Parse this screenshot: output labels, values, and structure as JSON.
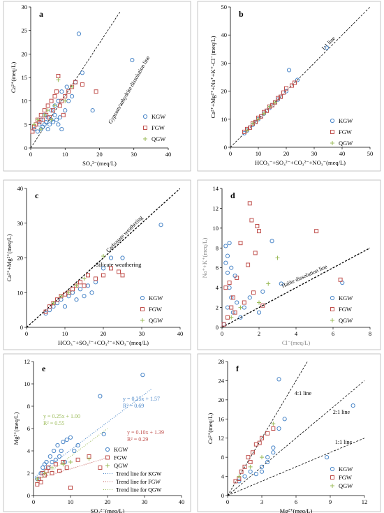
{
  "colors": {
    "KGW": "#4a86c8",
    "FGW": "#c0504d",
    "QGW": "#9bbb59",
    "frame": "#b8b8b8",
    "axis": "#000000"
  },
  "chart_data": [
    {
      "id": "a",
      "type": "scatter",
      "panel_label": "a",
      "xlabel": "SO₄²⁻(meq/L)",
      "ylabel": "Ca²⁺(meq/L)",
      "xlim": [
        0,
        40
      ],
      "ylim": [
        0,
        30
      ],
      "xticks": [
        "0",
        "10",
        "20",
        "30",
        "40"
      ],
      "yticks": [
        "0",
        "5",
        "10",
        "15",
        "20",
        "25",
        "30"
      ],
      "legend": [
        "KGW",
        "FGW",
        "QGW"
      ],
      "legend_position": "right",
      "reference_lines": [
        {
          "label": "Gypsum/anhydrite dissolution line",
          "x1": 0,
          "y1": 0,
          "x2": 26,
          "y2": 29
        }
      ],
      "series": [
        {
          "name": "KGW",
          "marker": "circle",
          "x": [
            1,
            2,
            2.5,
            3,
            3,
            3.5,
            4,
            4,
            4.5,
            5,
            5,
            5.5,
            6,
            6,
            6.5,
            7,
            7,
            7.5,
            8,
            8,
            8.5,
            9,
            9,
            10,
            10.5,
            11,
            12,
            13,
            14,
            15,
            18,
            29.5
          ],
          "y": [
            4,
            3.5,
            5,
            4,
            6,
            4.5,
            5,
            7,
            5.5,
            4,
            6.5,
            5,
            6,
            8,
            5.5,
            7,
            9,
            6,
            5,
            10,
            6.5,
            4,
            12,
            8,
            13,
            10,
            11,
            14,
            24.3,
            16,
            8,
            18.7
          ]
        },
        {
          "name": "FGW",
          "marker": "square",
          "x": [
            0.5,
            1,
            1.5,
            2,
            2.5,
            3,
            3.5,
            4,
            4.5,
            5,
            5.5,
            6,
            6.5,
            7,
            7.5,
            8,
            8.5,
            9,
            9.5,
            10,
            11,
            12,
            13,
            15,
            19
          ],
          "y": [
            3.5,
            4.5,
            5,
            6,
            5.5,
            7,
            6,
            8,
            7,
            9,
            6.5,
            10,
            8,
            11,
            12,
            15.3,
            9,
            10,
            7,
            11,
            12,
            13,
            14,
            13.5,
            12
          ]
        },
        {
          "name": "QGW",
          "marker": "plus",
          "x": [
            1,
            2,
            3,
            4,
            5,
            6,
            7,
            8,
            10,
            12
          ],
          "y": [
            5,
            6,
            4,
            7,
            8,
            6,
            9,
            14.5,
            10,
            13
          ]
        }
      ]
    },
    {
      "id": "b",
      "type": "scatter",
      "panel_label": "b",
      "xlabel": "HCO₃⁻+SO₄²⁻+CO₃²⁻+NO₃⁻(meq/L)",
      "ylabel": "Ca²⁺+Mg²⁺+Na⁺+K⁺-Cl⁻(meq/L)",
      "xlim": [
        0,
        50
      ],
      "ylim": [
        0,
        50
      ],
      "xticks": [
        "0",
        "10",
        "20",
        "30",
        "40",
        "50"
      ],
      "yticks": [
        "0",
        "10",
        "20",
        "30",
        "40",
        "50"
      ],
      "legend": [
        "KGW",
        "FGW",
        "QGW"
      ],
      "legend_position": "bottom-right",
      "reference_lines": [
        {
          "label": "1:1 line",
          "x1": 0,
          "y1": 0,
          "x2": 50,
          "y2": 50
        }
      ],
      "series": [
        {
          "name": "KGW",
          "marker": "circle",
          "x": [
            5,
            6,
            7,
            8,
            9,
            10,
            11,
            12,
            13,
            14,
            15,
            16,
            17,
            18,
            20,
            21,
            24,
            34.5
          ],
          "y": [
            5,
            6,
            7,
            8,
            9,
            10,
            11,
            12,
            13,
            14,
            15,
            16,
            17,
            18,
            20,
            27.5,
            24,
            35.5
          ]
        },
        {
          "name": "FGW",
          "marker": "square",
          "x": [
            5,
            6,
            7,
            8,
            9,
            10,
            11,
            12,
            13,
            14,
            15,
            16,
            17,
            18,
            19,
            20,
            22,
            23
          ],
          "y": [
            5.5,
            6.5,
            7,
            8.5,
            9,
            10.5,
            11,
            12.5,
            13,
            14.5,
            15,
            16,
            17.5,
            18,
            19.5,
            21,
            22,
            23
          ]
        },
        {
          "name": "QGW",
          "marker": "plus",
          "x": [
            6,
            8,
            10,
            12,
            14,
            16
          ],
          "y": [
            6,
            8.5,
            10,
            12,
            14.5,
            16
          ]
        }
      ]
    },
    {
      "id": "c",
      "type": "scatter",
      "panel_label": "c",
      "xlabel": "HCO₃⁻+SO₄²⁻+CO₃²⁻+NO₃⁻(meq/L)",
      "ylabel": "Ca²⁺+Mg²⁺(meq/L)",
      "xlim": [
        0,
        40
      ],
      "ylim": [
        0,
        40
      ],
      "xticks": [
        "0",
        "10",
        "20",
        "30",
        "40"
      ],
      "yticks": [
        "0",
        "10",
        "20",
        "30",
        "40"
      ],
      "legend": [
        "KGW",
        "FGW",
        "QGW"
      ],
      "legend_position": "bottom-right",
      "reference_lines": [
        {
          "label": "Carbonate weathering",
          "x1": 0,
          "y1": 0,
          "x2": 40,
          "y2": 40
        }
      ],
      "region_labels": [
        "Silicate weathering"
      ],
      "series": [
        {
          "name": "KGW",
          "marker": "circle",
          "x": [
            5,
            6,
            7,
            8,
            9,
            10,
            11,
            12,
            13,
            14,
            15,
            16,
            17,
            18,
            20,
            22,
            25,
            35
          ],
          "y": [
            4,
            5,
            6,
            7,
            8,
            6,
            9,
            10,
            8,
            11,
            9,
            12,
            10,
            13,
            17,
            20,
            20,
            29.5
          ]
        },
        {
          "name": "FGW",
          "marker": "square",
          "x": [
            5,
            6,
            7,
            8,
            9,
            10,
            11,
            12,
            13,
            14,
            15,
            16,
            18,
            20,
            22,
            24,
            25
          ],
          "y": [
            4.5,
            6,
            7,
            8,
            9,
            9.5,
            10,
            11,
            12,
            13,
            12,
            15,
            14,
            15,
            17,
            16,
            15
          ]
        },
        {
          "name": "QGW",
          "marker": "plus",
          "x": [
            7,
            9,
            11,
            13,
            15,
            20
          ],
          "y": [
            7,
            9,
            10,
            12,
            14,
            20.5
          ]
        }
      ]
    },
    {
      "id": "d",
      "type": "scatter",
      "panel_label": "d",
      "xlabel": "Cl⁻(meq/L)",
      "ylabel": "Na⁺+K⁺(meq/L)",
      "xlim": [
        0,
        8
      ],
      "ylim": [
        0,
        14
      ],
      "xticks": [
        "0",
        "2",
        "4",
        "6",
        "8"
      ],
      "yticks": [
        "0",
        "2",
        "4",
        "6",
        "8",
        "10",
        "12",
        "14"
      ],
      "legend": [
        "KGW",
        "FGW",
        "QGW"
      ],
      "legend_position": "bottom-right",
      "reference_lines": [
        {
          "label": "Halite dissolution line",
          "x1": 0,
          "y1": 0,
          "x2": 8,
          "y2": 8
        }
      ],
      "series": [
        {
          "name": "KGW",
          "marker": "circle",
          "x": [
            0.1,
            0.2,
            0.2,
            0.3,
            0.3,
            0.3,
            0.4,
            0.4,
            0.5,
            0.5,
            0.6,
            0.7,
            0.8,
            1.0,
            1.2,
            1.5,
            2.0,
            2.2,
            2.7,
            3.2,
            6.5
          ],
          "y": [
            0.3,
            8.2,
            6.5,
            7.2,
            5.5,
            2.0,
            4.0,
            8.5,
            3.0,
            6.0,
            1.5,
            5.2,
            2.5,
            1.0,
            2.0,
            3.0,
            1.5,
            3.6,
            8.7,
            4.4,
            4.5
          ]
        },
        {
          "name": "FGW",
          "marker": "square",
          "x": [
            0.1,
            0.2,
            0.3,
            0.4,
            0.5,
            0.6,
            0.7,
            0.8,
            1.0,
            1.2,
            1.4,
            1.5,
            1.6,
            1.7,
            1.8,
            1.9,
            2.0,
            2.2,
            5.1,
            6.4
          ],
          "y": [
            0.3,
            4.0,
            1.0,
            4.5,
            2.0,
            3.0,
            1.5,
            5.0,
            8.5,
            2.5,
            6.3,
            12.5,
            10.8,
            3.5,
            7.5,
            10.2,
            9.7,
            2.2,
            9.7,
            4.8
          ]
        },
        {
          "name": "QGW",
          "marker": "plus",
          "x": [
            0.5,
            1.0,
            2.0,
            2.5,
            3.0
          ],
          "y": [
            1.0,
            2.0,
            2.5,
            4.4,
            7.0
          ]
        }
      ]
    },
    {
      "id": "e",
      "type": "scatter",
      "panel_label": "e",
      "xlabel": "SO₄²⁻(meq/L)",
      "ylabel": "Mg²⁺(meq/L)",
      "xlim": [
        0,
        40
      ],
      "ylim": [
        0,
        12
      ],
      "xticks": [
        "0",
        "10",
        "20",
        "30",
        "40"
      ],
      "yticks": [
        "0",
        "2",
        "4",
        "6",
        "8",
        "10",
        "12"
      ],
      "legend": [
        "KGW",
        "FGW",
        "QGW",
        "Trend line for KGW",
        "Trend line for FGW",
        "Trend line for QGW"
      ],
      "legend_position": "bottom-right",
      "trendlines": [
        {
          "series": "KGW",
          "equation": "y = 0.25x + 1.57",
          "r2": "R² = 0.69",
          "slope": 0.25,
          "intercept": 1.57
        },
        {
          "series": "FGW",
          "equation": "y = 0.10x + 1.39",
          "r2": "R² = 0.29",
          "slope": 0.1,
          "intercept": 1.39
        },
        {
          "series": "QGW",
          "equation": "y = 0.25x + 1.00",
          "r2": "R² = 0.55",
          "slope": 0.25,
          "intercept": 1.0
        }
      ],
      "series": [
        {
          "name": "KGW",
          "marker": "circle",
          "x": [
            1,
            2,
            2.5,
            3,
            3.5,
            4,
            4.5,
            5,
            5.5,
            6,
            6.5,
            7,
            7.5,
            8,
            8.5,
            9,
            10,
            11,
            12,
            18,
            19,
            29.5
          ],
          "y": [
            1.5,
            2,
            2.5,
            2.8,
            3,
            2.5,
            3.5,
            3,
            4,
            3.2,
            4.5,
            3.5,
            4,
            4.8,
            3,
            5,
            5.2,
            4,
            4.5,
            8.9,
            5.5,
            10.8
          ]
        },
        {
          "name": "FGW",
          "marker": "square",
          "x": [
            1,
            1.5,
            2,
            2.5,
            3,
            3.5,
            4,
            5,
            6,
            7,
            8,
            9,
            10,
            12,
            15,
            18
          ],
          "y": [
            1,
            1.5,
            1.2,
            2,
            1.8,
            2.2,
            2.5,
            2,
            2.8,
            2.2,
            3,
            2.5,
            0.7,
            3.2,
            3.5,
            2.5
          ]
        },
        {
          "name": "QGW",
          "marker": "plus",
          "x": [
            1,
            3,
            5,
            8,
            10,
            15
          ],
          "y": [
            1.5,
            2,
            2.5,
            2.8,
            3,
            3.3
          ]
        }
      ]
    },
    {
      "id": "f",
      "type": "scatter",
      "panel_label": "f",
      "xlabel": "Mg²⁺(meq/L)",
      "ylabel": "Ca²⁺(meq/L)",
      "xlim": [
        0,
        12
      ],
      "ylim": [
        0,
        28
      ],
      "xticks": [
        "0",
        "3",
        "6",
        "9",
        "12"
      ],
      "yticks": [
        "0",
        "4",
        "8",
        "12",
        "16",
        "20",
        "24",
        "28"
      ],
      "legend": [
        "KGW",
        "FGW",
        "QGW"
      ],
      "legend_position": "bottom-right",
      "reference_lines": [
        {
          "label": "4:1 line",
          "x1": 0,
          "y1": 0,
          "x2": 7,
          "y2": 28
        },
        {
          "label": "2:1 line",
          "x1": 0,
          "y1": 0,
          "x2": 12,
          "y2": 24
        },
        {
          "label": "1:1 line",
          "x1": 0,
          "y1": 0,
          "x2": 12,
          "y2": 12
        }
      ],
      "series": [
        {
          "name": "KGW",
          "marker": "circle",
          "x": [
            1,
            1.5,
            2,
            2.5,
            3,
            3,
            3.5,
            3.5,
            4,
            4,
            4.5,
            4.5,
            5,
            8.7,
            11
          ],
          "y": [
            3,
            4,
            5,
            4.5,
            6,
            5,
            7,
            8,
            9,
            10,
            14,
            24.3,
            16,
            8,
            18.8
          ]
        },
        {
          "name": "FGW",
          "marker": "square",
          "x": [
            0.7,
            1,
            1.2,
            1.5,
            1.8,
            2,
            2.2,
            2.5,
            2.8,
            3,
            3.5,
            4
          ],
          "y": [
            3,
            3.5,
            5,
            6,
            8,
            7,
            9,
            10.7,
            11,
            12,
            13,
            14
          ]
        },
        {
          "name": "QGW",
          "marker": "plus",
          "x": [
            1,
            2,
            3,
            4
          ],
          "y": [
            4,
            6,
            8,
            15
          ]
        }
      ]
    }
  ]
}
